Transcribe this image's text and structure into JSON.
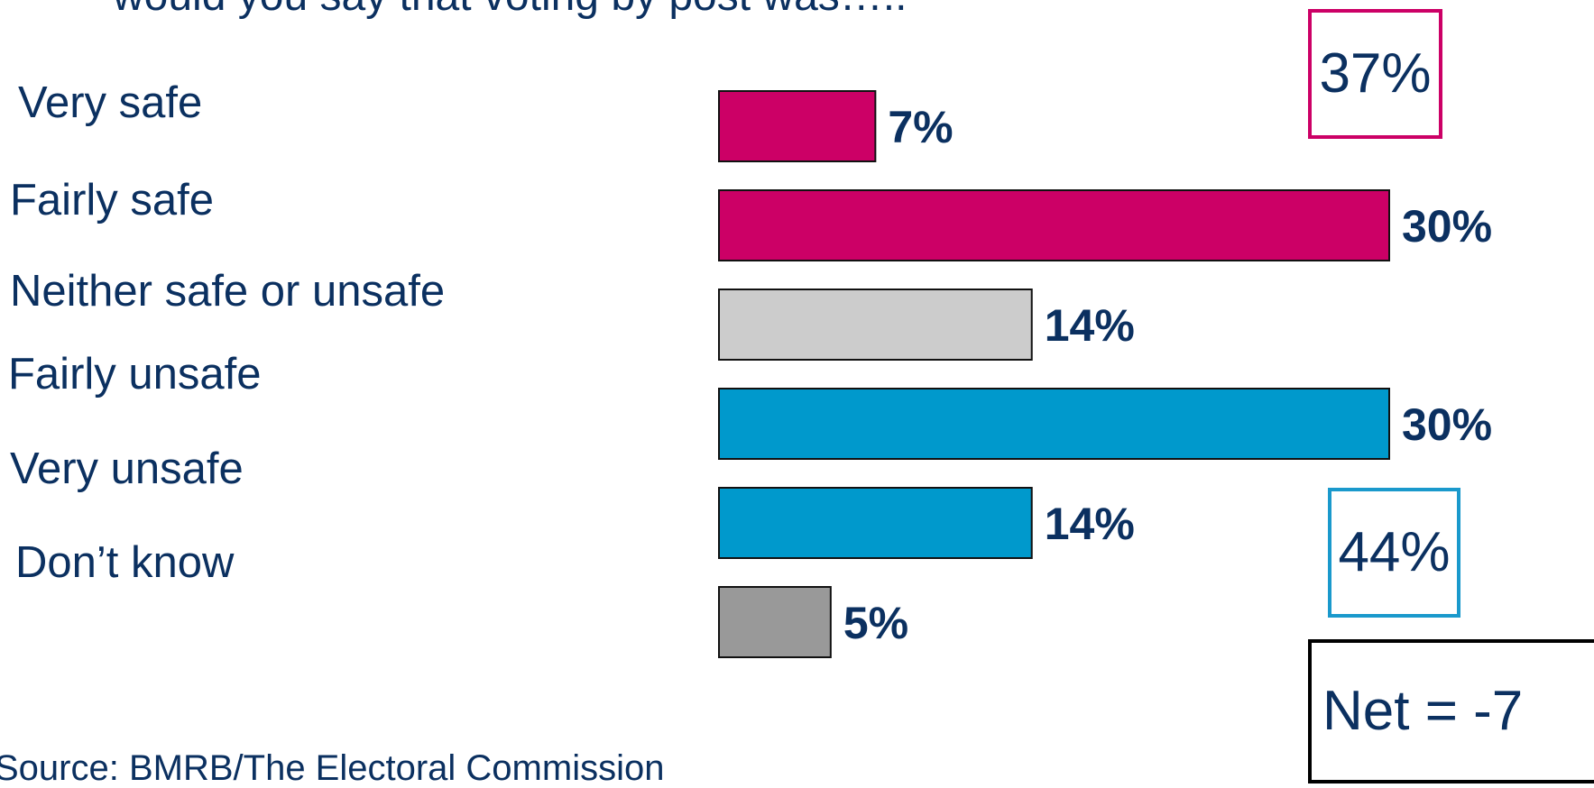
{
  "question": "would you say that voting by post was…..",
  "source": "Source: BMRB/The Electoral Commission",
  "totals": {
    "safe": "37%",
    "unsafe": "44%",
    "net": "Net = -7"
  },
  "colors": {
    "safe": "#cc0066",
    "neutral": "#cccccc",
    "unsafe": "#0099cc",
    "dont_know": "#999999",
    "text": "#0b3060"
  },
  "chart_data": {
    "type": "bar",
    "orientation": "horizontal",
    "categories": [
      "Very safe",
      "Fairly safe",
      "Neither safe or unsafe",
      "Fairly unsafe",
      "Very unsafe",
      "Don’t know"
    ],
    "values": [
      7,
      30,
      14,
      30,
      14,
      5
    ],
    "value_labels": [
      "7%",
      "30%",
      "14%",
      "30%",
      "14%",
      "5%"
    ],
    "bar_colors": [
      "#cc0066",
      "#cc0066",
      "#cccccc",
      "#0099cc",
      "#0099cc",
      "#999999"
    ],
    "xlim": [
      0,
      30
    ],
    "grid": false
  }
}
